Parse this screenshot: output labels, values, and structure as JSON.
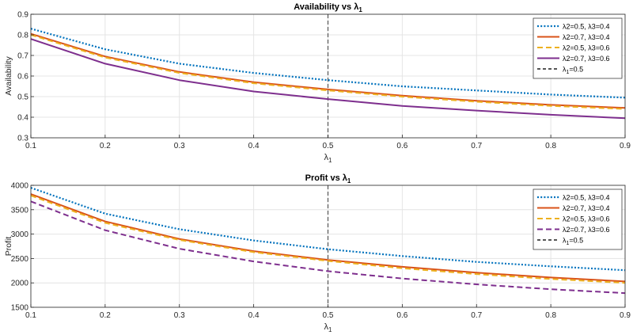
{
  "colors": {
    "blue": "#0072BD",
    "orange": "#D95319",
    "yellow": "#EDB120",
    "purple": "#7E2F8E",
    "gray": "#555555"
  },
  "chart_data": [
    {
      "type": "line",
      "title_main": "Availability vs λ",
      "title_sub": "1",
      "xlabel_main": "λ",
      "xlabel_sub": "1",
      "ylabel": "Availability",
      "xlim": [
        0.1,
        0.9
      ],
      "ylim": [
        0.3,
        0.9
      ],
      "xticks": [
        "0.1",
        "0.2",
        "0.3",
        "0.4",
        "0.5",
        "0.6",
        "0.7",
        "0.8",
        "0.9"
      ],
      "yticks": [
        "0.3",
        "0.4",
        "0.5",
        "0.6",
        "0.7",
        "0.8",
        "0.9"
      ],
      "grid": true,
      "legend_position": "top-right",
      "x": [
        0.1,
        0.2,
        0.3,
        0.4,
        0.5,
        0.6,
        0.7,
        0.8,
        0.9
      ],
      "series": [
        {
          "name": "λ2=0.5, λ3=0.4",
          "style": "dotted",
          "color": "blue",
          "values": [
            0.83,
            0.73,
            0.66,
            0.615,
            0.58,
            0.55,
            0.53,
            0.51,
            0.495
          ]
        },
        {
          "name": "λ2=0.7, λ3=0.4",
          "style": "solid",
          "color": "orange",
          "values": [
            0.805,
            0.695,
            0.62,
            0.57,
            0.535,
            0.505,
            0.48,
            0.46,
            0.445
          ]
        },
        {
          "name": "λ2=0.5, λ3=0.6",
          "style": "dashed",
          "color": "yellow",
          "values": [
            0.8,
            0.69,
            0.615,
            0.565,
            0.53,
            0.5,
            0.475,
            0.455,
            0.44
          ]
        },
        {
          "name": "λ2=0.7, λ3=0.6",
          "style": "solid",
          "color": "purple",
          "values": [
            0.78,
            0.66,
            0.58,
            0.525,
            0.488,
            0.455,
            0.432,
            0.412,
            0.395
          ]
        }
      ],
      "vline": {
        "x": 0.5,
        "label_main": "λ",
        "label_sub": "1",
        "label_rest": "=0.5"
      }
    },
    {
      "type": "line",
      "title_main": "Profit vs λ",
      "title_sub": "1",
      "xlabel_main": "λ",
      "xlabel_sub": "1",
      "ylabel": "Profit",
      "xlim": [
        0.1,
        0.9
      ],
      "ylim": [
        1500,
        4000
      ],
      "xticks": [
        "0.1",
        "0.2",
        "0.3",
        "0.4",
        "0.5",
        "0.6",
        "0.7",
        "0.8",
        "0.9"
      ],
      "yticks": [
        "1500",
        "2000",
        "2500",
        "3000",
        "3500",
        "4000"
      ],
      "grid": true,
      "legend_position": "top-right",
      "x": [
        0.1,
        0.2,
        0.3,
        0.4,
        0.5,
        0.6,
        0.7,
        0.8,
        0.9
      ],
      "series": [
        {
          "name": "λ2=0.5, λ3=0.4",
          "style": "dotted",
          "color": "blue",
          "values": [
            3950,
            3420,
            3100,
            2870,
            2690,
            2550,
            2430,
            2340,
            2260
          ]
        },
        {
          "name": "λ2=0.7, λ3=0.4",
          "style": "solid",
          "color": "orange",
          "values": [
            3820,
            3260,
            2900,
            2650,
            2470,
            2330,
            2210,
            2110,
            2030
          ]
        },
        {
          "name": "λ2=0.5, λ3=0.6",
          "style": "dashed",
          "color": "yellow",
          "values": [
            3790,
            3230,
            2880,
            2630,
            2450,
            2300,
            2180,
            2080,
            2000
          ]
        },
        {
          "name": "λ2=0.7, λ3=0.6",
          "style": "dashed",
          "color": "purple",
          "values": [
            3670,
            3080,
            2700,
            2440,
            2240,
            2090,
            1970,
            1870,
            1790
          ]
        }
      ],
      "vline": {
        "x": 0.5,
        "label_main": "λ",
        "label_sub": "1",
        "label_rest": "=0.5"
      }
    }
  ]
}
